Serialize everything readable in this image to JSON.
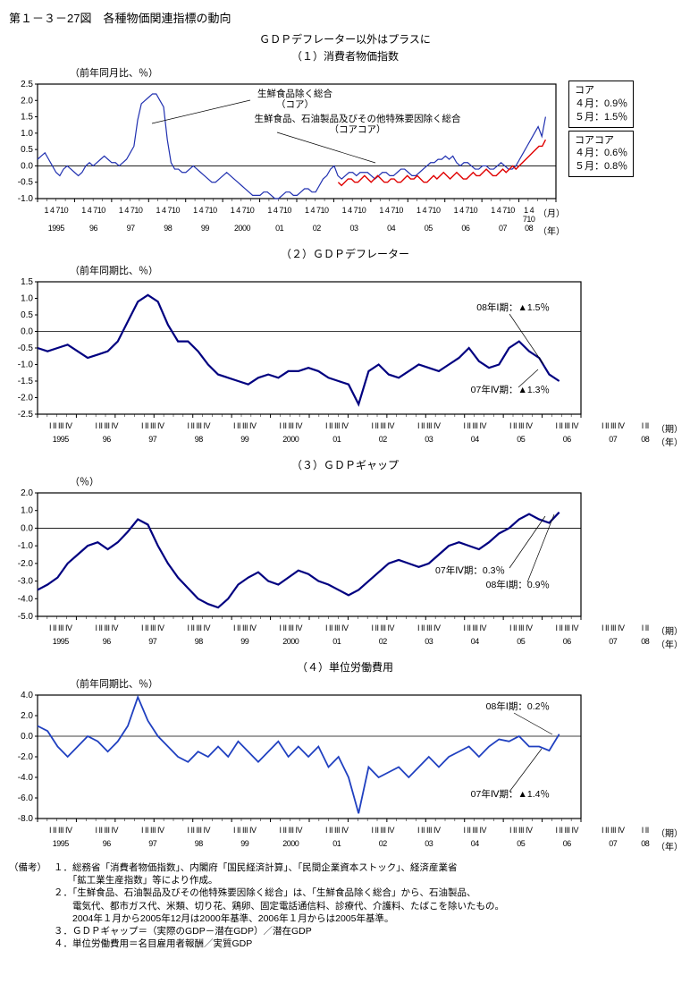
{
  "title_main": "第１－３－27図　各種物価関連指標の動向",
  "subtitle": "ＧＤＰデフレーター以外はプラスに",
  "years": [
    "1995",
    "96",
    "97",
    "98",
    "99",
    "2000",
    "01",
    "02",
    "03",
    "04",
    "05",
    "06",
    "07",
    "08"
  ],
  "months14": "1 4 710",
  "quarters": "I II III IV",
  "x_unit_month": "（月）",
  "x_unit_year": "（年）",
  "x_unit_q": "（期）",
  "chart1": {
    "header": "（１）消費者物価指数",
    "y_unit": "（前年同月比、％）",
    "ylim": [
      -1.0,
      2.5
    ],
    "ytick_step": 0.5,
    "color_core": "#2030b0",
    "color_corecore": "#e00000",
    "line_width": 1.2,
    "core": [
      0.2,
      0.3,
      0.4,
      0.2,
      0.0,
      -0.2,
      -0.3,
      -0.1,
      0.0,
      -0.1,
      -0.2,
      -0.3,
      -0.2,
      0.0,
      0.1,
      0.0,
      0.1,
      0.2,
      0.3,
      0.2,
      0.1,
      0.1,
      0.0,
      0.1,
      0.2,
      0.4,
      0.6,
      1.4,
      1.9,
      2.0,
      2.1,
      2.2,
      2.2,
      2.0,
      1.8,
      0.8,
      0.1,
      -0.1,
      -0.1,
      -0.2,
      -0.2,
      -0.1,
      0.0,
      -0.1,
      -0.2,
      -0.3,
      -0.4,
      -0.5,
      -0.5,
      -0.4,
      -0.3,
      -0.2,
      -0.3,
      -0.4,
      -0.5,
      -0.6,
      -0.7,
      -0.8,
      -0.9,
      -0.9,
      -0.9,
      -0.8,
      -0.8,
      -0.9,
      -1.0,
      -1.0,
      -0.9,
      -0.8,
      -0.8,
      -0.9,
      -0.9,
      -0.8,
      -0.7,
      -0.7,
      -0.8,
      -0.8,
      -0.6,
      -0.4,
      -0.3,
      -0.1,
      0.0,
      -0.3,
      -0.4,
      -0.3,
      -0.2,
      -0.2,
      -0.3,
      -0.2,
      -0.2,
      -0.2,
      -0.3,
      -0.4,
      -0.3,
      -0.2,
      -0.2,
      -0.3,
      -0.3,
      -0.2,
      -0.1,
      -0.1,
      -0.2,
      -0.3,
      -0.3,
      -0.2,
      -0.1,
      0.0,
      0.1,
      0.1,
      0.2,
      0.2,
      0.3,
      0.2,
      0.3,
      0.1,
      0.0,
      0.1,
      0.1,
      0.0,
      -0.1,
      -0.1,
      0.0,
      0.0,
      -0.1,
      -0.1,
      0.0,
      0.1,
      0.0,
      -0.1,
      -0.1,
      0.0,
      0.2,
      0.4,
      0.6,
      0.8,
      1.0,
      1.2,
      0.9,
      1.5
    ],
    "corecore": [
      -0.5,
      -0.6,
      -0.5,
      -0.4,
      -0.4,
      -0.5,
      -0.5,
      -0.4,
      -0.3,
      -0.4,
      -0.5,
      -0.4,
      -0.3,
      -0.4,
      -0.5,
      -0.5,
      -0.4,
      -0.4,
      -0.5,
      -0.5,
      -0.4,
      -0.3,
      -0.4,
      -0.4,
      -0.3,
      -0.4,
      -0.5,
      -0.5,
      -0.4,
      -0.3,
      -0.4,
      -0.3,
      -0.2,
      -0.3,
      -0.4,
      -0.3,
      -0.2,
      -0.3,
      -0.4,
      -0.4,
      -0.3,
      -0.2,
      -0.3,
      -0.3,
      -0.2,
      -0.1,
      -0.2,
      -0.3,
      -0.3,
      -0.2,
      -0.1,
      -0.2,
      -0.1,
      0.0,
      -0.1,
      0.0,
      0.1,
      0.2,
      0.3,
      0.4,
      0.5,
      0.6,
      0.6,
      0.8
    ],
    "ann_core_1": "生鮮食品除く総合",
    "ann_core_2": "（コア）",
    "ann_cc_1": "生鮮食品、石油製品及びその他特殊要因除く総合",
    "ann_cc_2": "（コアコア）",
    "box_core_t": "コア",
    "box_core_1": "４月：0.9％",
    "box_core_2": "５月：1.5％",
    "box_cc_t": "コアコア",
    "box_cc_1": "４月：0.6％",
    "box_cc_2": "５月：0.8％"
  },
  "chart2": {
    "header": "（２）ＧＤＰデフレーター",
    "y_unit": "（前年同期比、％）",
    "ylim": [
      -2.5,
      1.5
    ],
    "ytick_step": 0.5,
    "color": "#000080",
    "line_width": 2.2,
    "data": [
      -0.5,
      -0.6,
      -0.5,
      -0.4,
      -0.6,
      -0.8,
      -0.7,
      -0.6,
      -0.3,
      0.3,
      0.9,
      1.1,
      0.9,
      0.2,
      -0.3,
      -0.3,
      -0.6,
      -1.0,
      -1.3,
      -1.4,
      -1.5,
      -1.6,
      -1.4,
      -1.3,
      -1.4,
      -1.2,
      -1.2,
      -1.1,
      -1.2,
      -1.4,
      -1.5,
      -1.6,
      -2.2,
      -1.2,
      -1.0,
      -1.3,
      -1.4,
      -1.2,
      -1.0,
      -1.1,
      -1.2,
      -1.0,
      -0.8,
      -0.5,
      -0.9,
      -1.1,
      -1.0,
      -0.5,
      -0.3,
      -0.6,
      -0.8,
      -1.3,
      -1.5
    ],
    "ann_1": "08年Ⅰ期：▲1.5％",
    "ann_2": "07年Ⅳ期：▲1.3％"
  },
  "chart3": {
    "header": "（３）ＧＤＰギャップ",
    "y_unit": "（％）",
    "ylim": [
      -5.0,
      2.0
    ],
    "ytick_step": 1.0,
    "color": "#000080",
    "line_width": 2.2,
    "data": [
      -3.5,
      -3.2,
      -2.8,
      -2.0,
      -1.5,
      -1.0,
      -0.8,
      -1.2,
      -0.8,
      -0.2,
      0.5,
      0.2,
      -1.0,
      -2.0,
      -2.8,
      -3.4,
      -4.0,
      -4.3,
      -4.5,
      -4.0,
      -3.2,
      -2.8,
      -2.5,
      -3.0,
      -3.2,
      -2.8,
      -2.4,
      -2.6,
      -3.0,
      -3.2,
      -3.5,
      -3.8,
      -3.5,
      -3.0,
      -2.5,
      -2.0,
      -1.8,
      -2.0,
      -2.2,
      -2.0,
      -1.5,
      -1.0,
      -0.8,
      -1.0,
      -1.2,
      -0.8,
      -0.3,
      0.0,
      0.5,
      0.8,
      0.5,
      0.3,
      0.9
    ],
    "ann_1": "07年Ⅳ期：0.3％",
    "ann_2": "08年Ⅰ期：0.9％"
  },
  "chart4": {
    "header": "（４）単位労働費用",
    "y_unit": "（前年同期比、％）",
    "ylim": [
      -8.0,
      4.0
    ],
    "ytick_step": 2.0,
    "color": "#2040c0",
    "line_width": 1.8,
    "data": [
      1.0,
      0.5,
      -1.0,
      -2.0,
      -1.0,
      0.0,
      -0.5,
      -1.5,
      -0.5,
      1.0,
      3.8,
      1.5,
      0.0,
      -1.0,
      -2.0,
      -2.5,
      -1.5,
      -2.0,
      -1.0,
      -2.0,
      -0.5,
      -1.5,
      -2.5,
      -1.5,
      -0.5,
      -2.0,
      -1.0,
      -2.0,
      -1.0,
      -3.0,
      -2.0,
      -4.0,
      -7.5,
      -3.0,
      -4.0,
      -3.5,
      -3.0,
      -4.0,
      -3.0,
      -2.0,
      -3.0,
      -2.0,
      -1.5,
      -1.0,
      -2.0,
      -1.0,
      -0.3,
      -0.5,
      0.0,
      -1.0,
      -1.0,
      -1.4,
      0.2
    ],
    "ann_1": "08年Ⅰ期：0.2％",
    "ann_2": "07年Ⅳ期：▲1.4％"
  },
  "notes_head": "（備考）",
  "notes": [
    "１．総務省「消費者物価指数」、内閣府「国民経済計算」、「民間企業資本ストック」、経済産業省\n　　「鉱工業生産指数」等により作成。",
    "２．「生鮮食品、石油製品及びその他特殊要因除く総合」は、「生鮮食品除く総合」から、石油製品、\n　　電気代、都市ガス代、米類、切り花、鶏卵、固定電話通信料、診療代、介護料、たばこを除いたもの。\n　　2004年１月から2005年12月は2000年基準、2006年１月からは2005年基準。",
    "３．ＧＤＰギャップ＝（実際のGDP－潜在GDP）／潜在GDP",
    "４．単位労働費用＝名目雇用者報酬／実質GDP"
  ]
}
